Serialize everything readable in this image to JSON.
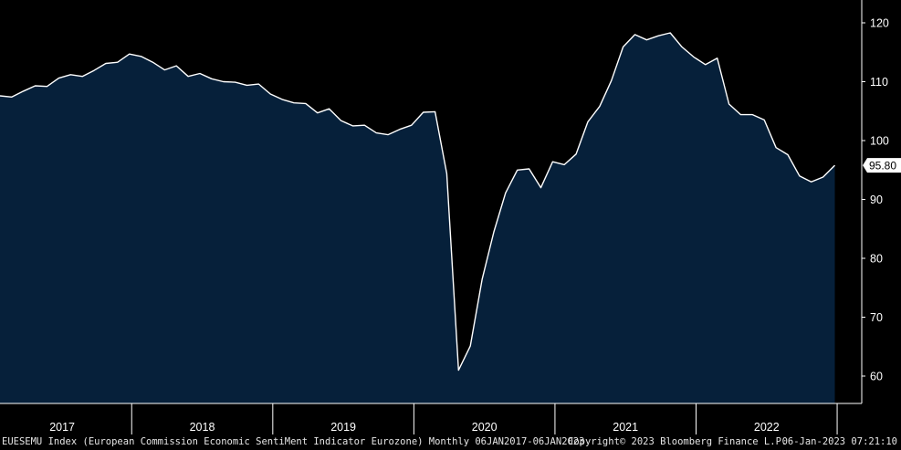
{
  "chart_data": {
    "type": "area",
    "title": "",
    "xlabel": "",
    "ylabel": "",
    "ylim": [
      55,
      125
    ],
    "yticks": [
      60,
      70,
      80,
      90,
      100,
      110,
      120
    ],
    "year_labels": [
      "2017",
      "2018",
      "2019",
      "2020",
      "2021",
      "2022"
    ],
    "last_value_label": "95.80",
    "grid": false,
    "colors": {
      "fill": "#06203a",
      "line": "#ffffff",
      "background": "#000000",
      "axis": "#ffffff"
    },
    "series": [
      {
        "x": [
          "Jan 2017",
          "Feb 2017",
          "Mar 2017",
          "Apr 2017",
          "May 2017",
          "Jun 2017",
          "Jul 2017",
          "Aug 2017",
          "Sep 2017",
          "Oct 2017",
          "Nov 2017",
          "Dec 2017",
          "Jan 2018",
          "Feb 2018",
          "Mar 2018",
          "Apr 2018",
          "May 2018",
          "Jun 2018",
          "Jul 2018",
          "Aug 2018",
          "Sep 2018",
          "Oct 2018",
          "Nov 2018",
          "Dec 2018",
          "Jan 2019",
          "Feb 2019",
          "Mar 2019",
          "Apr 2019",
          "May 2019",
          "Jun 2019",
          "Jul 2019",
          "Aug 2019",
          "Sep 2019",
          "Oct 2019",
          "Nov 2019",
          "Dec 2019",
          "Jan 2020",
          "Feb 2020",
          "Mar 2020",
          "Apr 2020",
          "May 2020",
          "Jun 2020",
          "Jul 2020",
          "Aug 2020",
          "Sep 2020",
          "Oct 2020",
          "Nov 2020",
          "Dec 2020",
          "Jan 2021",
          "Feb 2021",
          "Mar 2021",
          "Apr 2021",
          "May 2021",
          "Jun 2021",
          "Jul 2021",
          "Aug 2021",
          "Sep 2021",
          "Oct 2021",
          "Nov 2021",
          "Dec 2021",
          "Jan 2022",
          "Feb 2022",
          "Mar 2022",
          "Apr 2022",
          "May 2022",
          "Jun 2022",
          "Jul 2022",
          "Aug 2022",
          "Sep 2022",
          "Oct 2022",
          "Nov 2022",
          "Dec 2022"
        ],
        "values": [
          107.6,
          107.4,
          108.4,
          109.3,
          109.2,
          110.6,
          111.2,
          110.9,
          111.9,
          113.1,
          113.3,
          114.7,
          114.3,
          113.3,
          112.0,
          112.7,
          110.9,
          111.4,
          110.5,
          110.0,
          109.9,
          109.4,
          109.6,
          107.9,
          107.0,
          106.4,
          106.3,
          104.7,
          105.4,
          103.4,
          102.5,
          102.6,
          101.3,
          101.0,
          101.9,
          102.6,
          104.8,
          104.9,
          94.4,
          61.0,
          65.1,
          76.4,
          84.5,
          91.1,
          95.0,
          95.2,
          92.0,
          96.4,
          95.9,
          97.7,
          103.2,
          105.8,
          110.2,
          115.9,
          118.0,
          117.1,
          117.8,
          118.3,
          115.9,
          114.2,
          112.9,
          114.0,
          106.2,
          104.4,
          104.4,
          103.5,
          98.8,
          97.6,
          94.0,
          93.0,
          93.8,
          95.8
        ]
      }
    ]
  },
  "footer": {
    "description": "EUESEMU Index (European Commission Economic SentiMent Indicator Eurozone)  Monthly 06JAN2017-06JAN2023",
    "copyright": "Copyright© 2023 Bloomberg Finance L.P.",
    "timestamp": "06-Jan-2023 07:21:10"
  }
}
